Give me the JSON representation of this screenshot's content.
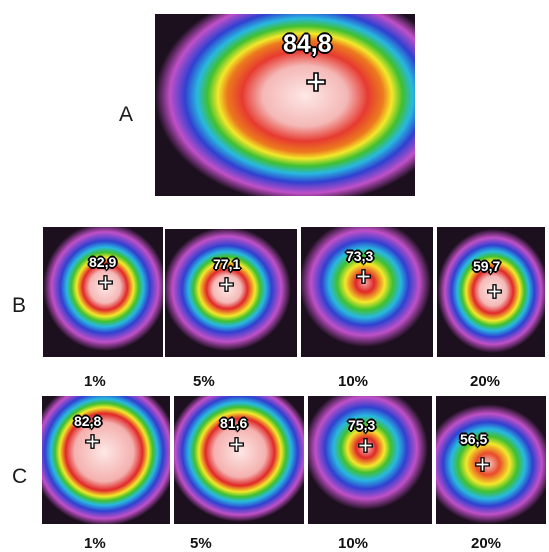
{
  "figure": {
    "rows": [
      {
        "letter": "A",
        "panels": [
          {
            "temp": "84,8"
          }
        ]
      },
      {
        "letter": "B",
        "panels": [
          {
            "temp": "82,9",
            "concentration": "1%"
          },
          {
            "temp": "77,1",
            "concentration": "5%"
          },
          {
            "temp": "73,3",
            "concentration": "10%"
          },
          {
            "temp": "59,7",
            "concentration": "20%"
          }
        ]
      },
      {
        "letter": "C",
        "panels": [
          {
            "temp": "82,8",
            "concentration": "1%"
          },
          {
            "temp": "81,6",
            "concentration": "5%"
          },
          {
            "temp": "75,3",
            "concentration": "10%"
          },
          {
            "temp": "56,5",
            "concentration": "20%"
          }
        ]
      }
    ],
    "colors": {
      "background": "#1c0f1e",
      "hot_core": "#fbe3e0",
      "red": "#e0202a",
      "yellow": "#f4e82a",
      "green": "#38c030",
      "cyan": "#28b8e0",
      "blue": "#3040d0",
      "magenta": "#c050c8"
    },
    "marker_icon": "crosshair-plus-icon"
  }
}
